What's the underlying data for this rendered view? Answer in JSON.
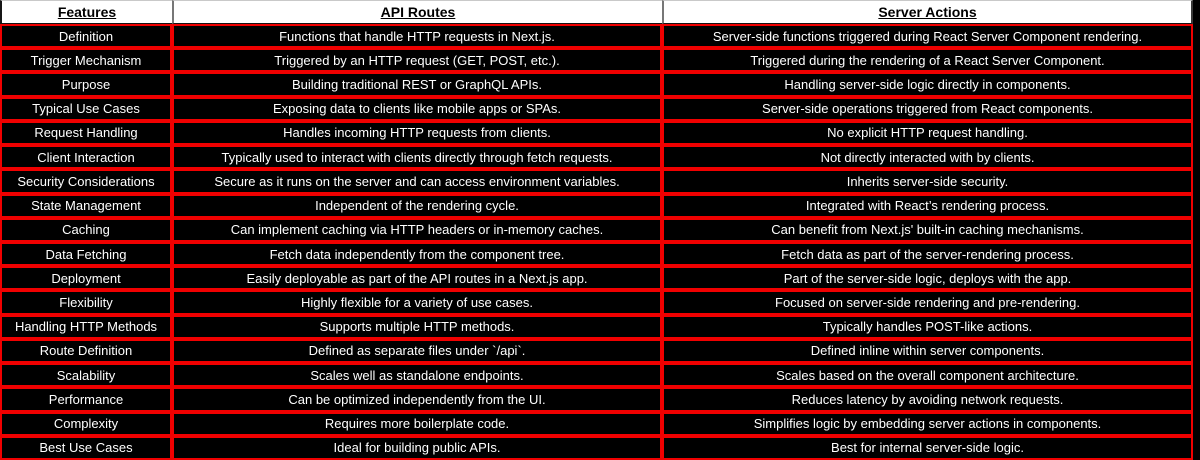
{
  "chart_data": {
    "type": "table",
    "columns": [
      "Features",
      "API Routes",
      "Server Actions"
    ],
    "rows": [
      [
        "Definition",
        "Functions that handle HTTP requests in Next.js.",
        "Server-side functions triggered during React Server Component rendering."
      ],
      [
        "Trigger Mechanism",
        "Triggered by an HTTP request (GET, POST, etc.).",
        "Triggered during the rendering of a React Server Component."
      ],
      [
        "Purpose",
        "Building traditional REST or GraphQL APIs.",
        "Handling server-side logic directly in components."
      ],
      [
        "Typical Use Cases",
        "Exposing data to clients like mobile apps or SPAs.",
        "Server-side operations triggered from React components."
      ],
      [
        "Request Handling",
        "Handles incoming HTTP requests from clients.",
        "No explicit HTTP request handling."
      ],
      [
        "Client Interaction",
        "Typically used to interact with clients directly through fetch requests.",
        "Not directly interacted with by clients."
      ],
      [
        "Security Considerations",
        "Secure as it runs on the server and can access environment variables.",
        "Inherits server-side security."
      ],
      [
        "State Management",
        "Independent of the rendering cycle.",
        "Integrated with React’s rendering process."
      ],
      [
        "Caching",
        "Can implement caching via HTTP headers or in-memory caches.",
        "Can benefit from Next.js' built-in caching mechanisms."
      ],
      [
        "Data Fetching",
        "Fetch data independently from the component tree.",
        "Fetch data as part of the server-rendering process."
      ],
      [
        "Deployment",
        "Easily deployable as part of the API routes in a Next.js app.",
        "Part of the server-side logic, deploys with the app."
      ],
      [
        "Flexibility",
        "Highly flexible for a variety of use cases.",
        "Focused on server-side rendering and pre-rendering."
      ],
      [
        "Handling HTTP Methods",
        "Supports multiple HTTP methods.",
        "Typically handles POST-like actions."
      ],
      [
        "Route Definition",
        "Defined as separate files under `/api`.",
        "Defined inline within server components."
      ],
      [
        "Scalability",
        "Scales well as standalone endpoints.",
        "Scales based on the overall component architecture."
      ],
      [
        "Performance",
        "Can be optimized independently from the UI.",
        "Reduces latency by avoiding network requests."
      ],
      [
        "Complexity",
        "Requires more boilerplate code.",
        "Simplifies logic by embedding server actions in components."
      ],
      [
        "Best Use Cases",
        "Ideal for building public APIs.",
        "Best for internal server-side logic."
      ]
    ]
  },
  "colors": {
    "border_red": "#f00000",
    "cell_bg": "#000000",
    "cell_text": "#ffffff",
    "header_bg": "#ffffff",
    "header_text": "#000000",
    "header_divider": "#777777"
  }
}
